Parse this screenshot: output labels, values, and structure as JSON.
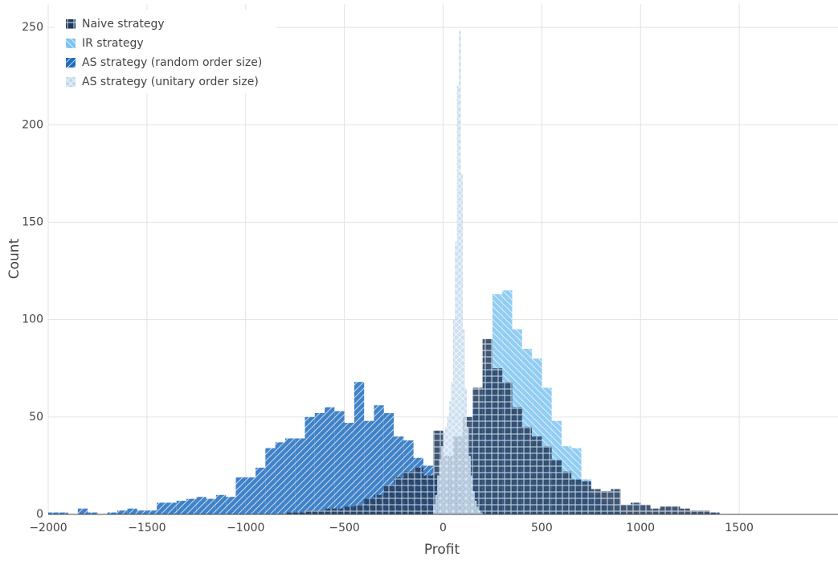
{
  "chart_data": {
    "type": "histogram",
    "xlabel": "Profit",
    "ylabel": "Count",
    "xlim": [
      -2000,
      2000
    ],
    "ylim": [
      0,
      262
    ],
    "xticks": [
      {
        "value": -2000,
        "label": "−2000"
      },
      {
        "value": -1500,
        "label": "−1500"
      },
      {
        "value": -1000,
        "label": "−1000"
      },
      {
        "value": -500,
        "label": "−500"
      },
      0,
      500,
      1000,
      1500
    ],
    "yticks": [
      0,
      50,
      100,
      150,
      200,
      250
    ],
    "grid": true,
    "legend": "top-left",
    "series": [
      {
        "name": "AS strategy (random order size)",
        "color": "#1f6dbf",
        "pattern": "/",
        "bins": [
          -2000,
          -1950,
          -1900,
          -1850,
          -1800,
          -1750,
          -1700,
          -1650,
          -1600,
          -1550,
          -1500,
          -1450,
          -1400,
          -1350,
          -1300,
          -1250,
          -1200,
          -1150,
          -1100,
          -1050,
          -1000,
          -950,
          -900,
          -850,
          -800,
          -750,
          -700,
          -650,
          -600,
          -550,
          -500,
          -450,
          -400,
          -350,
          -300,
          -250,
          -200,
          -150,
          -100,
          -50,
          0,
          50,
          100,
          150,
          200,
          250,
          300
        ],
        "values": [
          1,
          1,
          0,
          3,
          1,
          0,
          1,
          2,
          3,
          2,
          2,
          6,
          6,
          7,
          8,
          9,
          8,
          10,
          9,
          19,
          19,
          24,
          34,
          37,
          39,
          39,
          50,
          52,
          55,
          53,
          47,
          68,
          48,
          56,
          52,
          40,
          38,
          29,
          25,
          20,
          18,
          10,
          6,
          10,
          5,
          7
        ]
      },
      {
        "name": "IR strategy",
        "color": "#7ec4f2",
        "pattern": "\\",
        "bins": [
          0,
          50,
          100,
          150,
          200,
          250,
          300,
          350,
          400,
          450,
          500,
          550,
          600,
          650,
          700,
          750,
          800,
          850,
          900
        ],
        "values": [
          5,
          15,
          35,
          55,
          75,
          113,
          115,
          95,
          85,
          80,
          65,
          48,
          35,
          34,
          18,
          10,
          6,
          2
        ]
      },
      {
        "name": "Naive strategy",
        "color": "#1f3a5f",
        "pattern": "+",
        "bins": [
          -800,
          -750,
          -700,
          -650,
          -600,
          -550,
          -500,
          -450,
          -400,
          -350,
          -300,
          -250,
          -200,
          -150,
          -100,
          -50,
          0,
          50,
          100,
          150,
          200,
          250,
          300,
          350,
          400,
          450,
          500,
          550,
          600,
          650,
          700,
          750,
          800,
          850,
          900,
          950,
          1000,
          1050,
          1100,
          1150,
          1200,
          1250,
          1300,
          1350,
          1400
        ],
        "values": [
          1,
          1,
          2,
          2,
          3,
          3,
          4,
          5,
          8,
          10,
          15,
          19,
          22,
          24,
          20,
          43,
          30,
          40,
          50,
          65,
          90,
          75,
          68,
          55,
          45,
          40,
          35,
          28,
          22,
          18,
          17,
          13,
          12,
          13,
          5,
          6,
          5,
          3,
          4,
          4,
          3,
          2,
          2,
          1
        ]
      },
      {
        "name": "AS strategy (unitary order size)",
        "color": "#c3d9ee",
        "pattern": "x",
        "bins": [
          -50,
          -40,
          -30,
          -20,
          -10,
          0,
          10,
          20,
          30,
          40,
          50,
          60,
          70,
          80,
          90,
          100,
          110,
          120,
          130,
          140,
          150,
          160,
          170,
          180,
          190,
          200
        ],
        "values": [
          5,
          10,
          20,
          28,
          35,
          42,
          45,
          50,
          58,
          68,
          100,
          140,
          220,
          248,
          175,
          95,
          65,
          45,
          30,
          20,
          12,
          7,
          4,
          2,
          1
        ]
      }
    ]
  }
}
